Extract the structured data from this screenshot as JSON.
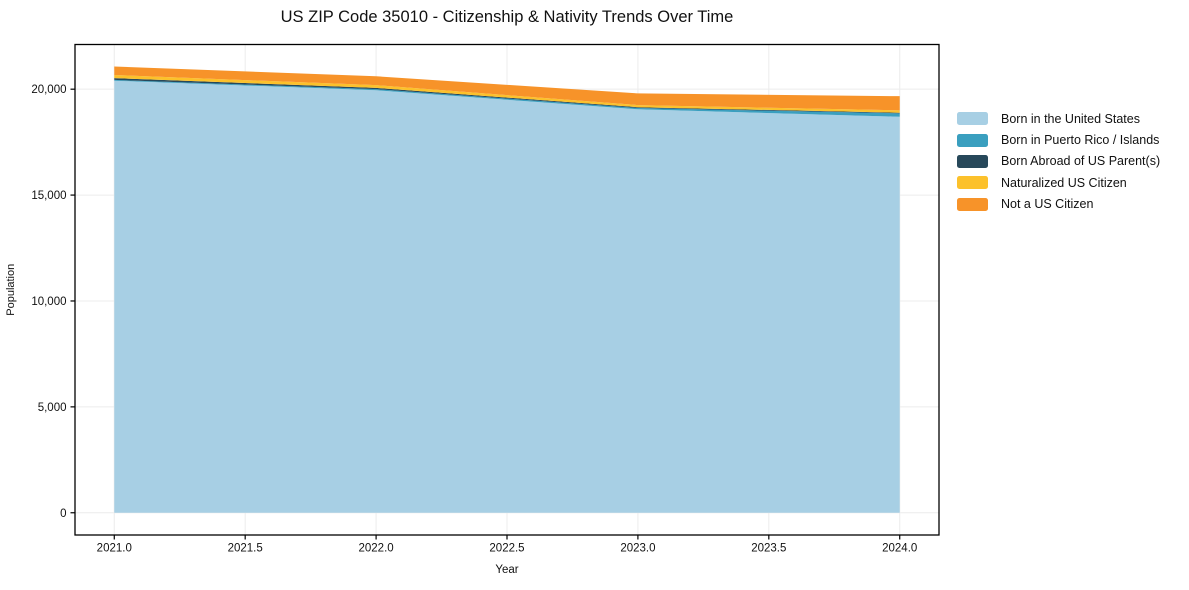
{
  "chart_data": {
    "type": "area",
    "stacked": true,
    "title": "US ZIP Code 35010 - Citizenship & Nativity Trends Over Time",
    "xlabel": "Year",
    "ylabel": "Population",
    "x": [
      2021,
      2022,
      2023,
      2024
    ],
    "series": [
      {
        "name": "Born in the United States",
        "color": "#a7cfe4",
        "values": [
          20400,
          19950,
          19050,
          18700
        ]
      },
      {
        "name": "Born in Puerto Rico / Islands",
        "color": "#3a9fbf",
        "values": [
          40,
          50,
          60,
          160
        ]
      },
      {
        "name": "Born Abroad of US Parent(s)",
        "color": "#27485a",
        "values": [
          80,
          60,
          40,
          30
        ]
      },
      {
        "name": "Naturalized US Citizen",
        "color": "#fcc12b",
        "values": [
          150,
          130,
          100,
          110
        ]
      },
      {
        "name": "Not a US Citizen",
        "color": "#f79329",
        "values": [
          400,
          420,
          550,
          670
        ]
      }
    ],
    "x_ticks": [
      {
        "v": 2021.0,
        "label": "2021.0"
      },
      {
        "v": 2021.5,
        "label": "2021.5"
      },
      {
        "v": 2022.0,
        "label": "2022.0"
      },
      {
        "v": 2022.5,
        "label": "2022.5"
      },
      {
        "v": 2023.0,
        "label": "2023.0"
      },
      {
        "v": 2023.5,
        "label": "2023.5"
      },
      {
        "v": 2024.0,
        "label": "2024.0"
      }
    ],
    "y_ticks": [
      {
        "v": 0,
        "label": "0"
      },
      {
        "v": 5000,
        "label": "5,000"
      },
      {
        "v": 10000,
        "label": "10,000"
      },
      {
        "v": 15000,
        "label": "15,000"
      },
      {
        "v": 20000,
        "label": "20,000"
      }
    ],
    "xlim": [
      2020.85,
      2024.15
    ],
    "ylim": [
      -1050,
      22110
    ],
    "grid": true,
    "grid_color": "#ececec",
    "frame_color": "#000000",
    "legend_position": "right-outside",
    "legend_frame": false
  }
}
